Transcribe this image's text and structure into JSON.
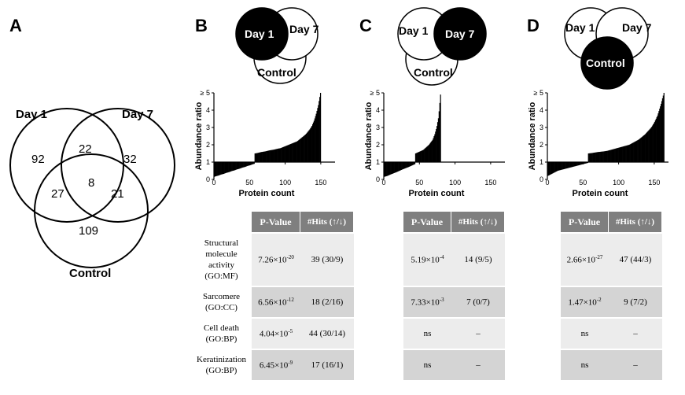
{
  "panels": {
    "a": "A",
    "b": "B",
    "c": "C",
    "d": "D"
  },
  "venn_main": {
    "sets": [
      "Day 1",
      "Day 7",
      "Control"
    ],
    "regions": {
      "day1_only": "92",
      "day1_day7": "22",
      "day7_only": "32",
      "day1_control": "27",
      "all_three": "8",
      "day7_control": "21",
      "control_only": "109"
    }
  },
  "small_venns": {
    "b": {
      "day1": "Day 1",
      "day7": "Day 7",
      "control": "Control",
      "highlighted": "Day 1"
    },
    "c": {
      "day1": "Day 1",
      "day7": "Day 7",
      "control": "Control",
      "highlighted": "Day 7"
    },
    "d": {
      "day1": "Day 1",
      "day7": "Day 7",
      "control": "Control",
      "highlighted": "Control"
    }
  },
  "chart_data": [
    {
      "type": "bar",
      "panel": "B",
      "xlabel": "Protein count",
      "ylabel": "Abundance ratio",
      "xlim": [
        0,
        170
      ],
      "ylim": [
        0,
        5
      ],
      "xticks": [
        "0",
        "50",
        "100",
        "150"
      ],
      "yticks": [
        "0",
        "1",
        "2",
        "3",
        "4",
        "≥ 5"
      ],
      "n_down": 57,
      "down_values": [
        0.15,
        0.18,
        0.2,
        0.22,
        0.25,
        0.28,
        0.3,
        0.32,
        0.35,
        0.38,
        0.4,
        0.42,
        0.45,
        0.48,
        0.5,
        0.52,
        0.55,
        0.58,
        0.6,
        0.62,
        0.65,
        0.68,
        0.7,
        0.72,
        0.75,
        0.78,
        0.8,
        0.82,
        0.85,
        0.88,
        0.9
      ],
      "n_up": 93,
      "up_values": [
        1.5,
        1.52,
        1.55,
        1.58,
        1.6,
        1.62,
        1.65,
        1.68,
        1.7,
        1.72,
        1.75,
        1.78,
        1.8,
        1.85,
        1.9,
        1.95,
        2.0,
        2.05,
        2.1,
        2.15,
        2.2,
        2.3,
        2.4,
        2.5,
        2.6,
        2.75,
        2.9,
        3.1,
        3.4,
        3.8,
        4.3,
        5.0
      ]
    },
    {
      "type": "bar",
      "panel": "C",
      "xlabel": "Protein count",
      "ylabel": "Abundance ratio",
      "xlim": [
        0,
        170
      ],
      "ylim": [
        0,
        5
      ],
      "xticks": [
        "0",
        "50",
        "100",
        "150"
      ],
      "yticks": [
        "0",
        "1",
        "2",
        "3",
        "4",
        "≥ 5"
      ],
      "n_down": 44,
      "down_values": [
        0.15,
        0.2,
        0.28,
        0.35,
        0.42,
        0.5,
        0.58,
        0.65,
        0.72,
        0.8,
        0.88
      ],
      "n_up": 36,
      "up_values": [
        1.5,
        1.55,
        1.6,
        1.65,
        1.7,
        1.8,
        1.9,
        2.0,
        2.15,
        2.3,
        2.6,
        3.0,
        3.6,
        4.9
      ]
    },
    {
      "type": "bar",
      "panel": "D",
      "xlabel": "Protein count",
      "ylabel": "Abundance ratio",
      "xlim": [
        0,
        170
      ],
      "ylim": [
        0,
        5
      ],
      "xticks": [
        "0",
        "50",
        "100",
        "150"
      ],
      "yticks": [
        "0",
        "1",
        "2",
        "3",
        "4",
        "≥ 5"
      ],
      "n_down": 57,
      "down_values": [
        0.2,
        0.3,
        0.4,
        0.5,
        0.55,
        0.6,
        0.65,
        0.7,
        0.75,
        0.8,
        0.85,
        0.9,
        0.95
      ],
      "n_up": 107,
      "up_values": [
        1.5,
        1.52,
        1.55,
        1.58,
        1.6,
        1.62,
        1.65,
        1.7,
        1.75,
        1.8,
        1.85,
        1.9,
        1.95,
        2.0,
        2.1,
        2.2,
        2.3,
        2.45,
        2.6,
        2.8,
        3.0,
        3.3,
        3.7,
        4.3,
        5.0
      ]
    }
  ],
  "tables": {
    "headers": {
      "pvalue": "P-Value",
      "hits": "#Hits (↑/↓)"
    },
    "row_labels": [
      {
        "lines": [
          "Structural",
          "molecule",
          "activity",
          "(GO:MF)"
        ]
      },
      {
        "lines": [
          "Sarcomere",
          "(GO:CC)"
        ]
      },
      {
        "lines": [
          "Cell death",
          "(GO:BP)"
        ]
      },
      {
        "lines": [
          "Keratinization",
          "(GO:BP)"
        ]
      }
    ],
    "b": [
      {
        "p_base": "7.26×10",
        "p_exp": "-20",
        "hits": "39 (30/9)"
      },
      {
        "p_base": "6.56×10",
        "p_exp": "-12",
        "hits": "18 (2/16)"
      },
      {
        "p_base": "4.04×10",
        "p_exp": "-5",
        "hits": "44 (30/14)"
      },
      {
        "p_base": "6.45×10",
        "p_exp": "-9",
        "hits": "17 (16/1)"
      }
    ],
    "c": [
      {
        "p_base": "5.19×10",
        "p_exp": "-4",
        "hits": "14 (9/5)"
      },
      {
        "p_base": "7.33×10",
        "p_exp": "-3",
        "hits": "7 (0/7)"
      },
      {
        "p_base": "ns",
        "p_exp": "",
        "hits": "–"
      },
      {
        "p_base": "ns",
        "p_exp": "",
        "hits": "–"
      }
    ],
    "d": [
      {
        "p_base": "2.66×10",
        "p_exp": "-27",
        "hits": "47 (44/3)"
      },
      {
        "p_base": "1.47×10",
        "p_exp": "-2",
        "hits": "9 (7/2)"
      },
      {
        "p_base": "ns",
        "p_exp": "",
        "hits": "–"
      },
      {
        "p_base": "ns",
        "p_exp": "",
        "hits": "–"
      }
    ]
  }
}
